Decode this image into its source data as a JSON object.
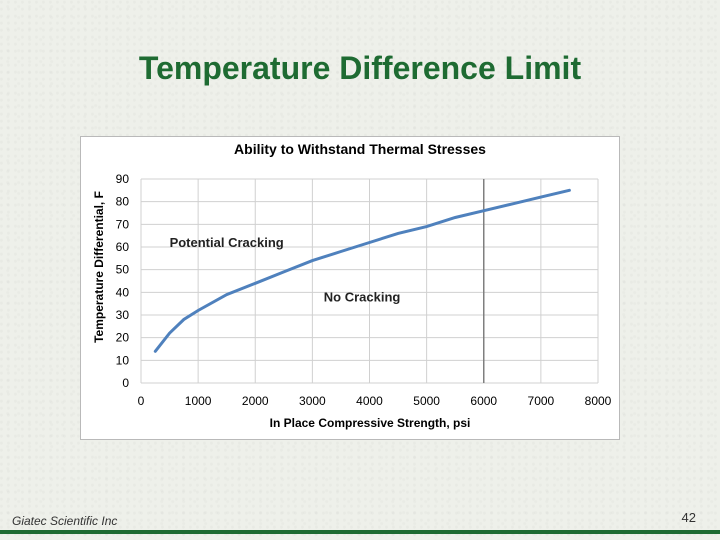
{
  "slide": {
    "title": "Temperature Difference Limit",
    "footer": "Giatec Scientific Inc",
    "page_number": "42",
    "accent_color": "#1e6b32"
  },
  "chart_data": {
    "type": "line",
    "title": "Ability to Withstand Thermal Stresses",
    "xlabel": "In Place Compressive Strength, psi",
    "ylabel": "Temperature Differential, F",
    "xlim": [
      0,
      8000
    ],
    "ylim": [
      0,
      90
    ],
    "x_ticks": [
      0,
      1000,
      2000,
      3000,
      4000,
      5000,
      6000,
      7000,
      8000
    ],
    "y_ticks": [
      0,
      10,
      20,
      30,
      40,
      50,
      60,
      70,
      80,
      90
    ],
    "grid": true,
    "line_color": "#4f81bd",
    "marker_line_x": 6000,
    "series": [
      {
        "x": [
          250,
          500,
          750,
          1000,
          1500,
          2000,
          2500,
          3000,
          3500,
          4000,
          4500,
          5000,
          5500,
          6000,
          6500,
          7000,
          7500
        ],
        "y": [
          14,
          22,
          28,
          32,
          39,
          44,
          49,
          54,
          58,
          62,
          66,
          69,
          73,
          76,
          79,
          82,
          85
        ]
      }
    ],
    "annotations": [
      {
        "text": "Potential Cracking",
        "x": 500,
        "y": 60
      },
      {
        "text": "No Cracking",
        "x": 3200,
        "y": 36
      }
    ]
  }
}
